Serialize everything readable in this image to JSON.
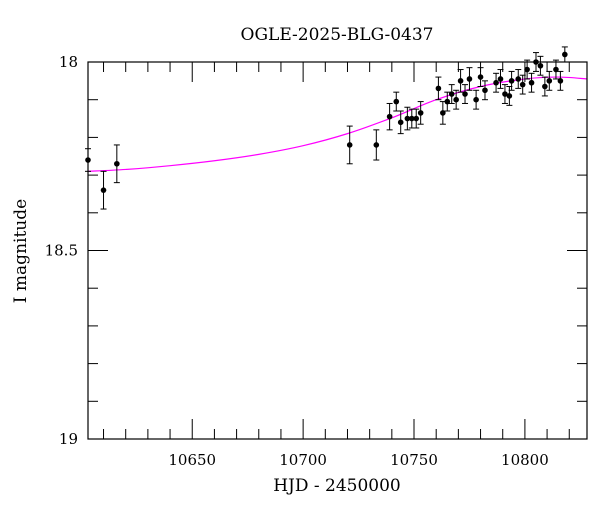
{
  "chart_data": {
    "type": "scatter",
    "title": "OGLE-2025-BLG-0437",
    "xlabel": "HJD - 2450000",
    "ylabel": "I magnitude",
    "xlim": [
      10603,
      10828
    ],
    "ylim": [
      19,
      18
    ],
    "y_inverted": true,
    "x_major_ticks": [
      10650,
      10700,
      10750,
      10800
    ],
    "x_major_labels": [
      "10650",
      "10700",
      "10750",
      "10800"
    ],
    "x_minor_step": 10,
    "y_major_ticks": [
      18,
      18.5,
      19
    ],
    "y_major_labels": [
      "18",
      "18.5",
      "19"
    ],
    "y_minor_step": 0.1,
    "model_color": "#ff00ff",
    "point_color": "#000000",
    "model": {
      "x": [
        10603,
        10620,
        10640,
        10660,
        10680,
        10700,
        10720,
        10740,
        10760,
        10780,
        10800,
        10815,
        10828
      ],
      "y": [
        18.29,
        18.285,
        18.275,
        18.262,
        18.245,
        18.222,
        18.19,
        18.148,
        18.1,
        18.065,
        18.045,
        18.04,
        18.045
      ]
    },
    "points": [
      {
        "x": 10603,
        "y": 18.26,
        "err": 0.03
      },
      {
        "x": 10610,
        "y": 18.34,
        "err": 0.05
      },
      {
        "x": 10616,
        "y": 18.27,
        "err": 0.05
      },
      {
        "x": 10721,
        "y": 18.22,
        "err": 0.05
      },
      {
        "x": 10733,
        "y": 18.22,
        "err": 0.04
      },
      {
        "x": 10739,
        "y": 18.145,
        "err": 0.035
      },
      {
        "x": 10742,
        "y": 18.105,
        "err": 0.025
      },
      {
        "x": 10744,
        "y": 18.16,
        "err": 0.03
      },
      {
        "x": 10747,
        "y": 18.15,
        "err": 0.03
      },
      {
        "x": 10749,
        "y": 18.15,
        "err": 0.025
      },
      {
        "x": 10751,
        "y": 18.15,
        "err": 0.025
      },
      {
        "x": 10753,
        "y": 18.135,
        "err": 0.03
      },
      {
        "x": 10761,
        "y": 18.07,
        "err": 0.03
      },
      {
        "x": 10763,
        "y": 18.135,
        "err": 0.03
      },
      {
        "x": 10765,
        "y": 18.105,
        "err": 0.025
      },
      {
        "x": 10767,
        "y": 18.085,
        "err": 0.025
      },
      {
        "x": 10769,
        "y": 18.1,
        "err": 0.025
      },
      {
        "x": 10771,
        "y": 18.05,
        "err": 0.03
      },
      {
        "x": 10773,
        "y": 18.085,
        "err": 0.025
      },
      {
        "x": 10775,
        "y": 18.045,
        "err": 0.03
      },
      {
        "x": 10778,
        "y": 18.1,
        "err": 0.025
      },
      {
        "x": 10780,
        "y": 18.04,
        "err": 0.025
      },
      {
        "x": 10782,
        "y": 18.075,
        "err": 0.025
      },
      {
        "x": 10787,
        "y": 18.055,
        "err": 0.025
      },
      {
        "x": 10789,
        "y": 18.045,
        "err": 0.025
      },
      {
        "x": 10791,
        "y": 18.085,
        "err": 0.025
      },
      {
        "x": 10793,
        "y": 18.09,
        "err": 0.025
      },
      {
        "x": 10794,
        "y": 18.05,
        "err": 0.025
      },
      {
        "x": 10797,
        "y": 18.045,
        "err": 0.025
      },
      {
        "x": 10799,
        "y": 18.06,
        "err": 0.025
      },
      {
        "x": 10801,
        "y": 18.02,
        "err": 0.025
      },
      {
        "x": 10803,
        "y": 18.055,
        "err": 0.025
      },
      {
        "x": 10805,
        "y": 18.0,
        "err": 0.025
      },
      {
        "x": 10807,
        "y": 18.01,
        "err": 0.025
      },
      {
        "x": 10809,
        "y": 18.065,
        "err": 0.025
      },
      {
        "x": 10811,
        "y": 18.05,
        "err": 0.025
      },
      {
        "x": 10814,
        "y": 18.02,
        "err": 0.025
      },
      {
        "x": 10816,
        "y": 18.05,
        "err": 0.025
      },
      {
        "x": 10818,
        "y": 17.98,
        "err": 0.02
      }
    ]
  }
}
